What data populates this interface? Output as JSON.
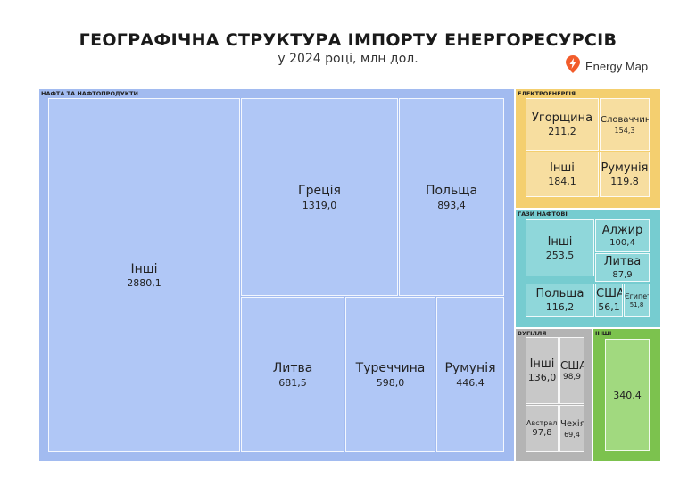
{
  "header": {
    "title": "ГЕОГРАФІЧНА СТРУКТУРА ІМПОРТУ ЕНЕРГОРЕСУРСІВ",
    "subtitle": "у 2024 році, млн дол."
  },
  "brand": {
    "name": "Energy Map",
    "icon": "energy-map-logo-icon",
    "color": "#f25c2b"
  },
  "chart_data": {
    "type": "treemap",
    "title": "ГЕОГРАФІЧНА СТРУКТУРА ІМПОРТУ ЕНЕРГОРЕСУРСІВ",
    "subtitle": "у 2024 році, млн дол.",
    "groups": [
      {
        "name": "НАФТА ТА НАФТОПРОДУКТИ",
        "color": "#a2bbf0",
        "cell_color": "#b0c7f6",
        "items": [
          {
            "name": "Інші",
            "value": 2880.1,
            "value_label": "2880,1"
          },
          {
            "name": "Греція",
            "value": 1319.0,
            "value_label": "1319,0"
          },
          {
            "name": "Польща",
            "value": 893.4,
            "value_label": "893,4"
          },
          {
            "name": "Литва",
            "value": 681.5,
            "value_label": "681,5"
          },
          {
            "name": "Туреччина",
            "value": 598.0,
            "value_label": "598,0"
          },
          {
            "name": "Румунія",
            "value": 446.4,
            "value_label": "446,4"
          }
        ]
      },
      {
        "name": "ЕЛЕКТРОЕНЕРГІЯ",
        "color": "#f4cf6f",
        "cell_color": "#f7dea0",
        "items": [
          {
            "name": "Угорщина",
            "value": 211.2,
            "value_label": "211,2"
          },
          {
            "name": "Словаччина",
            "value": 154.3,
            "value_label": "154,3"
          },
          {
            "name": "Інші",
            "value": 184.1,
            "value_label": "184,1"
          },
          {
            "name": "Румунія",
            "value": 119.8,
            "value_label": "119,8"
          }
        ]
      },
      {
        "name": "ГАЗИ НАФТОВІ",
        "color": "#76ccd0",
        "cell_color": "#8fd7da",
        "items": [
          {
            "name": "Інші",
            "value": 253.5,
            "value_label": "253,5"
          },
          {
            "name": "Алжир",
            "value": 100.4,
            "value_label": "100,4"
          },
          {
            "name": "Литва",
            "value": 87.9,
            "value_label": "87,9"
          },
          {
            "name": "Польща",
            "value": 116.2,
            "value_label": "116,2"
          },
          {
            "name": "США",
            "value": 56.1,
            "value_label": "56,1"
          },
          {
            "name": "Єгипет",
            "value": 51.8,
            "value_label": "51,8"
          }
        ]
      },
      {
        "name": "ВУГІЛЛЯ",
        "color": "#b4b4b4",
        "cell_color": "#c8c8c8",
        "items": [
          {
            "name": "Інші",
            "value": 136.0,
            "value_label": "136,0"
          },
          {
            "name": "США",
            "value": 98.9,
            "value_label": "98,9"
          },
          {
            "name": "Австралія",
            "value": 97.8,
            "value_label": "97,8"
          },
          {
            "name": "Чехія",
            "value": 69.4,
            "value_label": "69,4"
          }
        ]
      },
      {
        "name": "ІНШІ",
        "color": "#7cc24e",
        "cell_color": "#a1d97f",
        "items": [
          {
            "name": "",
            "value": 340.4,
            "value_label": "340,4"
          }
        ]
      }
    ]
  }
}
